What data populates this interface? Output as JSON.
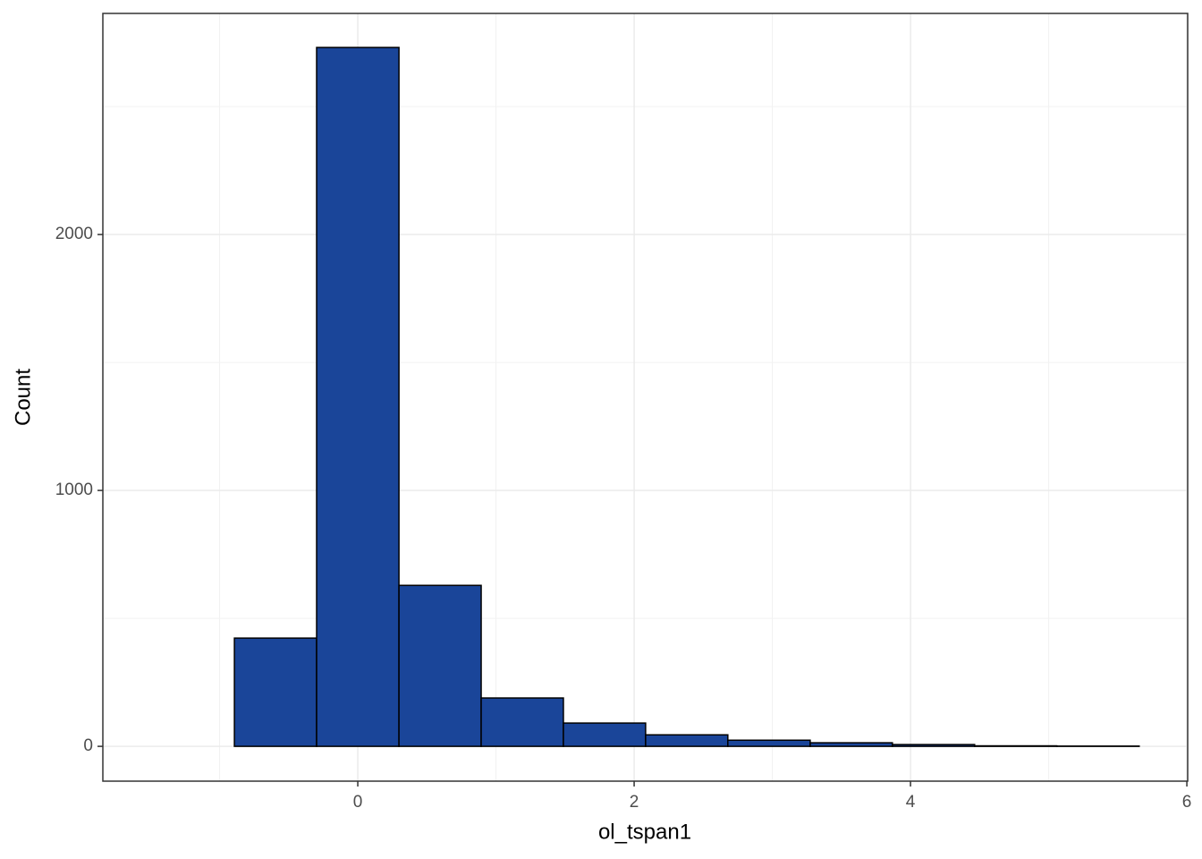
{
  "chart_data": {
    "type": "histogram",
    "x_label": "ol_tspan1",
    "y_label": "Count",
    "bins": [
      -1.488,
      -0.893,
      -0.298,
      0.298,
      0.893,
      1.488,
      2.083,
      2.678,
      3.274,
      3.869,
      4.464,
      5.059,
      5.655
    ],
    "values": [
      0,
      423,
      2731,
      629,
      189,
      91,
      45,
      24,
      14,
      7,
      2,
      1
    ],
    "color": "#1a4599",
    "xlim": [
      -1.845,
      6.006
    ],
    "ylim": [
      -136,
      2864
    ],
    "xticks": [
      0,
      2,
      4,
      6
    ],
    "yticks": [
      0,
      1000,
      2000
    ],
    "grid": true
  }
}
